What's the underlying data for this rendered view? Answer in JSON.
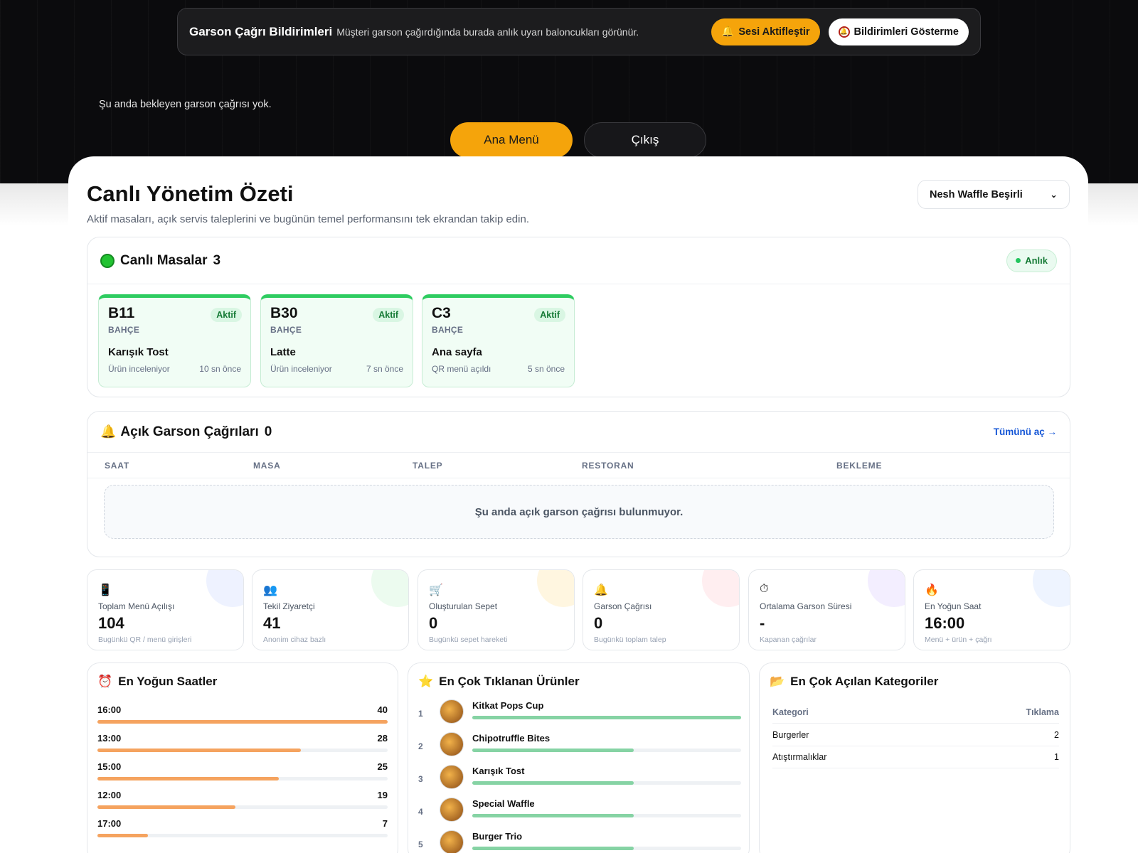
{
  "notifications": {
    "title": "Garson Çağrı Bildirimleri",
    "description": "Müşteri garson çağırdığında burada anlık uyarı baloncukları görünür.",
    "sound_button": "Sesi Aktifleştir",
    "hide_button": "Bildirimleri Gösterme"
  },
  "waiter_status": "Şu anda bekleyen garson çağrısı yok.",
  "nav": {
    "main_menu": "Ana Menü",
    "logout": "Çıkış"
  },
  "page": {
    "title": "Canlı Yönetim Özeti",
    "subtitle": "Aktif masaları, açık servis taleplerini ve bugünün temel performansını tek ekrandan takip edin.",
    "branch": "Nesh Waffle Beşirli"
  },
  "live_tables": {
    "title": "Canlı Masalar",
    "count": "3",
    "live_badge": "Anlık",
    "tables": [
      {
        "name": "B11",
        "status": "Aktif",
        "area": "BAHÇE",
        "product": "Karışık Tost",
        "activity": "Ürün inceleniyor",
        "time": "10 sn önce"
      },
      {
        "name": "B30",
        "status": "Aktif",
        "area": "BAHÇE",
        "product": "Latte",
        "activity": "Ürün inceleniyor",
        "time": "7 sn önce"
      },
      {
        "name": "C3",
        "status": "Aktif",
        "area": "BAHÇE",
        "product": "Ana sayfa",
        "activity": "QR menü açıldı",
        "time": "5 sn önce"
      }
    ]
  },
  "open_calls": {
    "title": "Açık Garson Çağrıları",
    "count": "0",
    "open_all": "Tümünü aç →",
    "columns": [
      "SAAT",
      "MASA",
      "TALEP",
      "RESTORAN",
      "BEKLEME"
    ],
    "empty": "Şu anda açık garson çağrısı bulunmuyor."
  },
  "stats": [
    {
      "icon": "phone-icon",
      "glyph": "📱",
      "label": "Toplam Menü Açılışı",
      "value": "104",
      "sub": "Bugünkü QR / menü girişleri",
      "blob": "#eef2ff"
    },
    {
      "icon": "users-icon",
      "glyph": "👥",
      "label": "Tekil Ziyaretçi",
      "value": "41",
      "sub": "Anonim cihaz bazlı",
      "blob": "#ecfbef"
    },
    {
      "icon": "cart-icon",
      "glyph": "🛒",
      "label": "Oluşturulan Sepet",
      "value": "0",
      "sub": "Bugünkü sepet hareketi",
      "blob": "#fff6e0"
    },
    {
      "icon": "bell-icon",
      "glyph": "🔔",
      "label": "Garson Çağrısı",
      "value": "0",
      "sub": "Bugünkü toplam talep",
      "blob": "#ffeef0"
    },
    {
      "icon": "stopwatch-icon",
      "glyph": "⏱",
      "label": "Ortalama Garson Süresi",
      "value": "-",
      "sub": "Kapanan çağrılar",
      "blob": "#f3eeff"
    },
    {
      "icon": "fire-icon",
      "glyph": "🔥",
      "label": "En Yoğun Saat",
      "value": "16:00",
      "sub": "Menü + ürün + çağrı",
      "blob": "#eef4ff"
    }
  ],
  "busy_hours": {
    "title": "En Yoğun Saatler",
    "max": 40,
    "rows": [
      {
        "hour": "16:00",
        "value": 40
      },
      {
        "hour": "13:00",
        "value": 28
      },
      {
        "hour": "15:00",
        "value": 25
      },
      {
        "hour": "12:00",
        "value": 19
      },
      {
        "hour": "17:00",
        "value": 7
      }
    ]
  },
  "top_products": {
    "title": "En Çok Tıklanan Ürünler",
    "rows": [
      {
        "rank": "1",
        "name": "Kitkat Pops Cup",
        "share": 1.0
      },
      {
        "rank": "2",
        "name": "Chipotruffle Bites",
        "share": 0.6
      },
      {
        "rank": "3",
        "name": "Karışık Tost",
        "share": 0.6
      },
      {
        "rank": "4",
        "name": "Special Waffle",
        "share": 0.6
      },
      {
        "rank": "5",
        "name": "Burger Trio",
        "share": 0.6
      }
    ]
  },
  "top_categories": {
    "title": "En Çok Açılan Kategoriler",
    "col_category": "Kategori",
    "col_clicks": "Tıklama",
    "rows": [
      {
        "name": "Burgerler",
        "clicks": "2"
      },
      {
        "name": "Atıştırmalıklar",
        "clicks": "1"
      }
    ]
  }
}
